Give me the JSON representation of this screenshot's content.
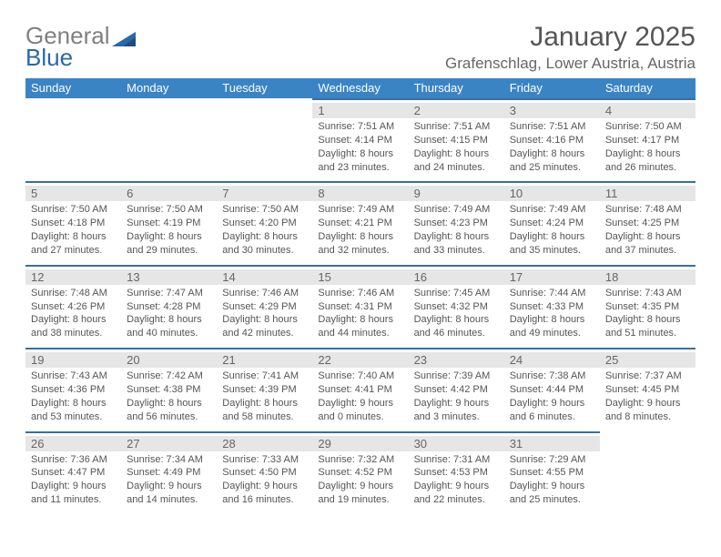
{
  "brand": {
    "word1": "General",
    "word2": "Blue"
  },
  "title": {
    "month": "January 2025",
    "location": "Grafenschlag, Lower Austria, Austria"
  },
  "colors": {
    "header_bg": "#3a84c4",
    "rule": "#3a6f9f",
    "daynum_bg": "#e6e6e6",
    "text": "#555555",
    "brand_gray": "#808080",
    "brand_blue": "#2a68a6"
  },
  "weekdays": [
    "Sunday",
    "Monday",
    "Tuesday",
    "Wednesday",
    "Thursday",
    "Friday",
    "Saturday"
  ],
  "weeks": [
    [
      null,
      null,
      null,
      {
        "n": "1",
        "sr": "7:51 AM",
        "ss": "4:14 PM",
        "dh": "8",
        "dm": "23"
      },
      {
        "n": "2",
        "sr": "7:51 AM",
        "ss": "4:15 PM",
        "dh": "8",
        "dm": "24"
      },
      {
        "n": "3",
        "sr": "7:51 AM",
        "ss": "4:16 PM",
        "dh": "8",
        "dm": "25"
      },
      {
        "n": "4",
        "sr": "7:50 AM",
        "ss": "4:17 PM",
        "dh": "8",
        "dm": "26"
      }
    ],
    [
      {
        "n": "5",
        "sr": "7:50 AM",
        "ss": "4:18 PM",
        "dh": "8",
        "dm": "27"
      },
      {
        "n": "6",
        "sr": "7:50 AM",
        "ss": "4:19 PM",
        "dh": "8",
        "dm": "29"
      },
      {
        "n": "7",
        "sr": "7:50 AM",
        "ss": "4:20 PM",
        "dh": "8",
        "dm": "30"
      },
      {
        "n": "8",
        "sr": "7:49 AM",
        "ss": "4:21 PM",
        "dh": "8",
        "dm": "32"
      },
      {
        "n": "9",
        "sr": "7:49 AM",
        "ss": "4:23 PM",
        "dh": "8",
        "dm": "33"
      },
      {
        "n": "10",
        "sr": "7:49 AM",
        "ss": "4:24 PM",
        "dh": "8",
        "dm": "35"
      },
      {
        "n": "11",
        "sr": "7:48 AM",
        "ss": "4:25 PM",
        "dh": "8",
        "dm": "37"
      }
    ],
    [
      {
        "n": "12",
        "sr": "7:48 AM",
        "ss": "4:26 PM",
        "dh": "8",
        "dm": "38"
      },
      {
        "n": "13",
        "sr": "7:47 AM",
        "ss": "4:28 PM",
        "dh": "8",
        "dm": "40"
      },
      {
        "n": "14",
        "sr": "7:46 AM",
        "ss": "4:29 PM",
        "dh": "8",
        "dm": "42"
      },
      {
        "n": "15",
        "sr": "7:46 AM",
        "ss": "4:31 PM",
        "dh": "8",
        "dm": "44"
      },
      {
        "n": "16",
        "sr": "7:45 AM",
        "ss": "4:32 PM",
        "dh": "8",
        "dm": "46"
      },
      {
        "n": "17",
        "sr": "7:44 AM",
        "ss": "4:33 PM",
        "dh": "8",
        "dm": "49"
      },
      {
        "n": "18",
        "sr": "7:43 AM",
        "ss": "4:35 PM",
        "dh": "8",
        "dm": "51"
      }
    ],
    [
      {
        "n": "19",
        "sr": "7:43 AM",
        "ss": "4:36 PM",
        "dh": "8",
        "dm": "53"
      },
      {
        "n": "20",
        "sr": "7:42 AM",
        "ss": "4:38 PM",
        "dh": "8",
        "dm": "56"
      },
      {
        "n": "21",
        "sr": "7:41 AM",
        "ss": "4:39 PM",
        "dh": "8",
        "dm": "58"
      },
      {
        "n": "22",
        "sr": "7:40 AM",
        "ss": "4:41 PM",
        "dh": "9",
        "dm": "0"
      },
      {
        "n": "23",
        "sr": "7:39 AM",
        "ss": "4:42 PM",
        "dh": "9",
        "dm": "3"
      },
      {
        "n": "24",
        "sr": "7:38 AM",
        "ss": "4:44 PM",
        "dh": "9",
        "dm": "6"
      },
      {
        "n": "25",
        "sr": "7:37 AM",
        "ss": "4:45 PM",
        "dh": "9",
        "dm": "8"
      }
    ],
    [
      {
        "n": "26",
        "sr": "7:36 AM",
        "ss": "4:47 PM",
        "dh": "9",
        "dm": "11"
      },
      {
        "n": "27",
        "sr": "7:34 AM",
        "ss": "4:49 PM",
        "dh": "9",
        "dm": "14"
      },
      {
        "n": "28",
        "sr": "7:33 AM",
        "ss": "4:50 PM",
        "dh": "9",
        "dm": "16"
      },
      {
        "n": "29",
        "sr": "7:32 AM",
        "ss": "4:52 PM",
        "dh": "9",
        "dm": "19"
      },
      {
        "n": "30",
        "sr": "7:31 AM",
        "ss": "4:53 PM",
        "dh": "9",
        "dm": "22"
      },
      {
        "n": "31",
        "sr": "7:29 AM",
        "ss": "4:55 PM",
        "dh": "9",
        "dm": "25"
      },
      null
    ]
  ],
  "labels": {
    "sunrise": "Sunrise: ",
    "sunset": "Sunset: ",
    "daylight_prefix": "Daylight: ",
    "hours_word": " hours",
    "and_word": "and ",
    "minutes_word": " minutes."
  }
}
